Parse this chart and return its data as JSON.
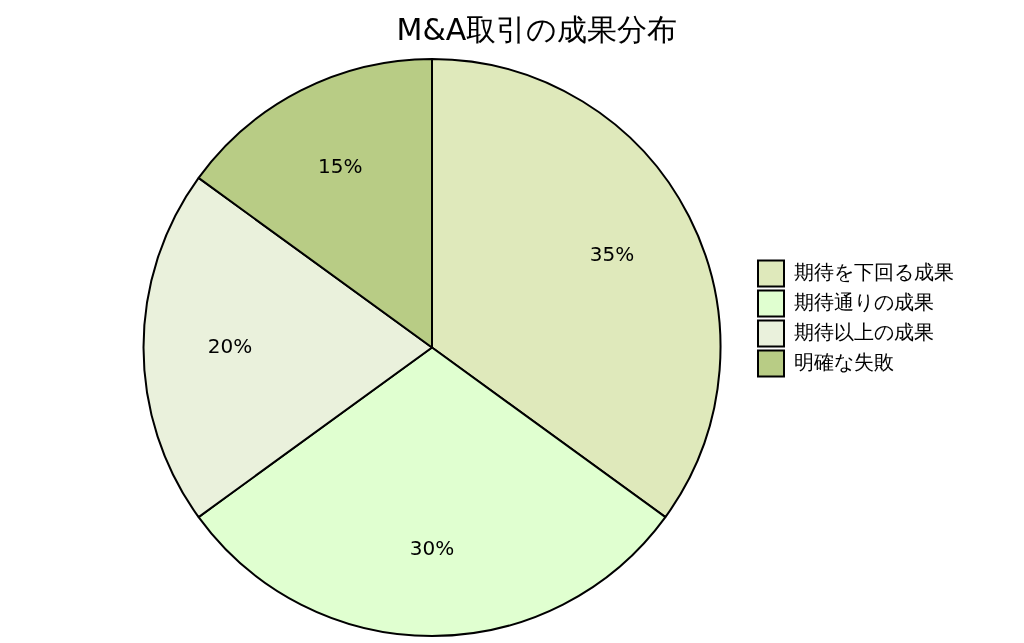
{
  "chart_data": {
    "type": "pie",
    "title": "M&A取引の成果分布",
    "categories": [
      "期待を下回る成果",
      "期待通りの成果",
      "期待以上の成果",
      "明確な失敗"
    ],
    "values": [
      35,
      30,
      20,
      15
    ],
    "colors": [
      "#dfe9bb",
      "#e0ffd0",
      "#eaf1dc",
      "#b8cc85"
    ],
    "value_labels": [
      "35%",
      "30%",
      "20%",
      "15%"
    ],
    "legend": "right"
  }
}
